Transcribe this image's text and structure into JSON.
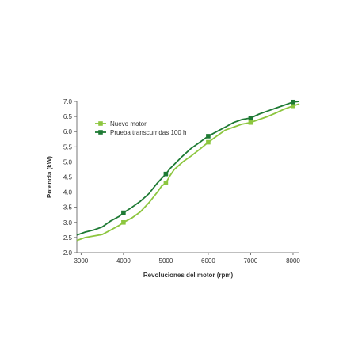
{
  "chart_data": {
    "type": "line",
    "title": "",
    "xlabel": "Revoluciones del motor (rpm)",
    "ylabel": "Potencia (kW)",
    "xlim": [
      2900,
      8150
    ],
    "ylim": [
      2.0,
      7.0
    ],
    "xticks": [
      3000,
      4000,
      5000,
      6000,
      7000,
      8000
    ],
    "xtick_labels": [
      "3000",
      "4000",
      "5000",
      "6000",
      "7000",
      "8000"
    ],
    "yticks": [
      2.0,
      2.5,
      3.0,
      3.5,
      4.0,
      4.5,
      5.0,
      5.5,
      6.0,
      6.5,
      7.0
    ],
    "ytick_labels": [
      "2.0",
      "2.5",
      "3.0",
      "3.5",
      "4.0",
      "4.5",
      "5.0",
      "5.5",
      "6.0",
      "6.5",
      "7.0"
    ],
    "grid": false,
    "legend_position": "top-left",
    "series": [
      {
        "name": "Nuevo motor",
        "color": "#8dc63f",
        "marker_x": [
          4000,
          5000,
          6000,
          7000,
          8000
        ],
        "x": [
          2900,
          3100,
          3300,
          3500,
          3700,
          3900,
          4000,
          4200,
          4400,
          4600,
          4800,
          4900,
          5000,
          5100,
          5200,
          5400,
          5600,
          5800,
          6000,
          6200,
          6400,
          6600,
          6800,
          7000,
          7200,
          7400,
          7600,
          7800,
          8000,
          8150
        ],
        "y": [
          2.4,
          2.5,
          2.55,
          2.6,
          2.75,
          2.9,
          3.0,
          3.15,
          3.35,
          3.65,
          4.0,
          4.2,
          4.3,
          4.55,
          4.75,
          5.0,
          5.2,
          5.42,
          5.65,
          5.85,
          6.05,
          6.15,
          6.25,
          6.3,
          6.4,
          6.5,
          6.62,
          6.75,
          6.85,
          6.92
        ]
      },
      {
        "name": "Prueba transcurridas 100 h",
        "color": "#1e7a34",
        "marker_x": [
          4000,
          5000,
          6000,
          7000,
          8000
        ],
        "x": [
          2900,
          3100,
          3300,
          3500,
          3700,
          3900,
          4000,
          4200,
          4400,
          4600,
          4800,
          4900,
          5000,
          5100,
          5200,
          5400,
          5600,
          5800,
          6000,
          6200,
          6400,
          6600,
          6800,
          7000,
          7200,
          7400,
          7600,
          7800,
          8000,
          8150
        ],
        "y": [
          2.58,
          2.68,
          2.75,
          2.85,
          3.05,
          3.2,
          3.32,
          3.5,
          3.7,
          3.95,
          4.3,
          4.45,
          4.6,
          4.78,
          4.92,
          5.2,
          5.45,
          5.65,
          5.85,
          6.0,
          6.15,
          6.3,
          6.4,
          6.45,
          6.58,
          6.68,
          6.78,
          6.88,
          6.98,
          7.0
        ]
      }
    ]
  }
}
